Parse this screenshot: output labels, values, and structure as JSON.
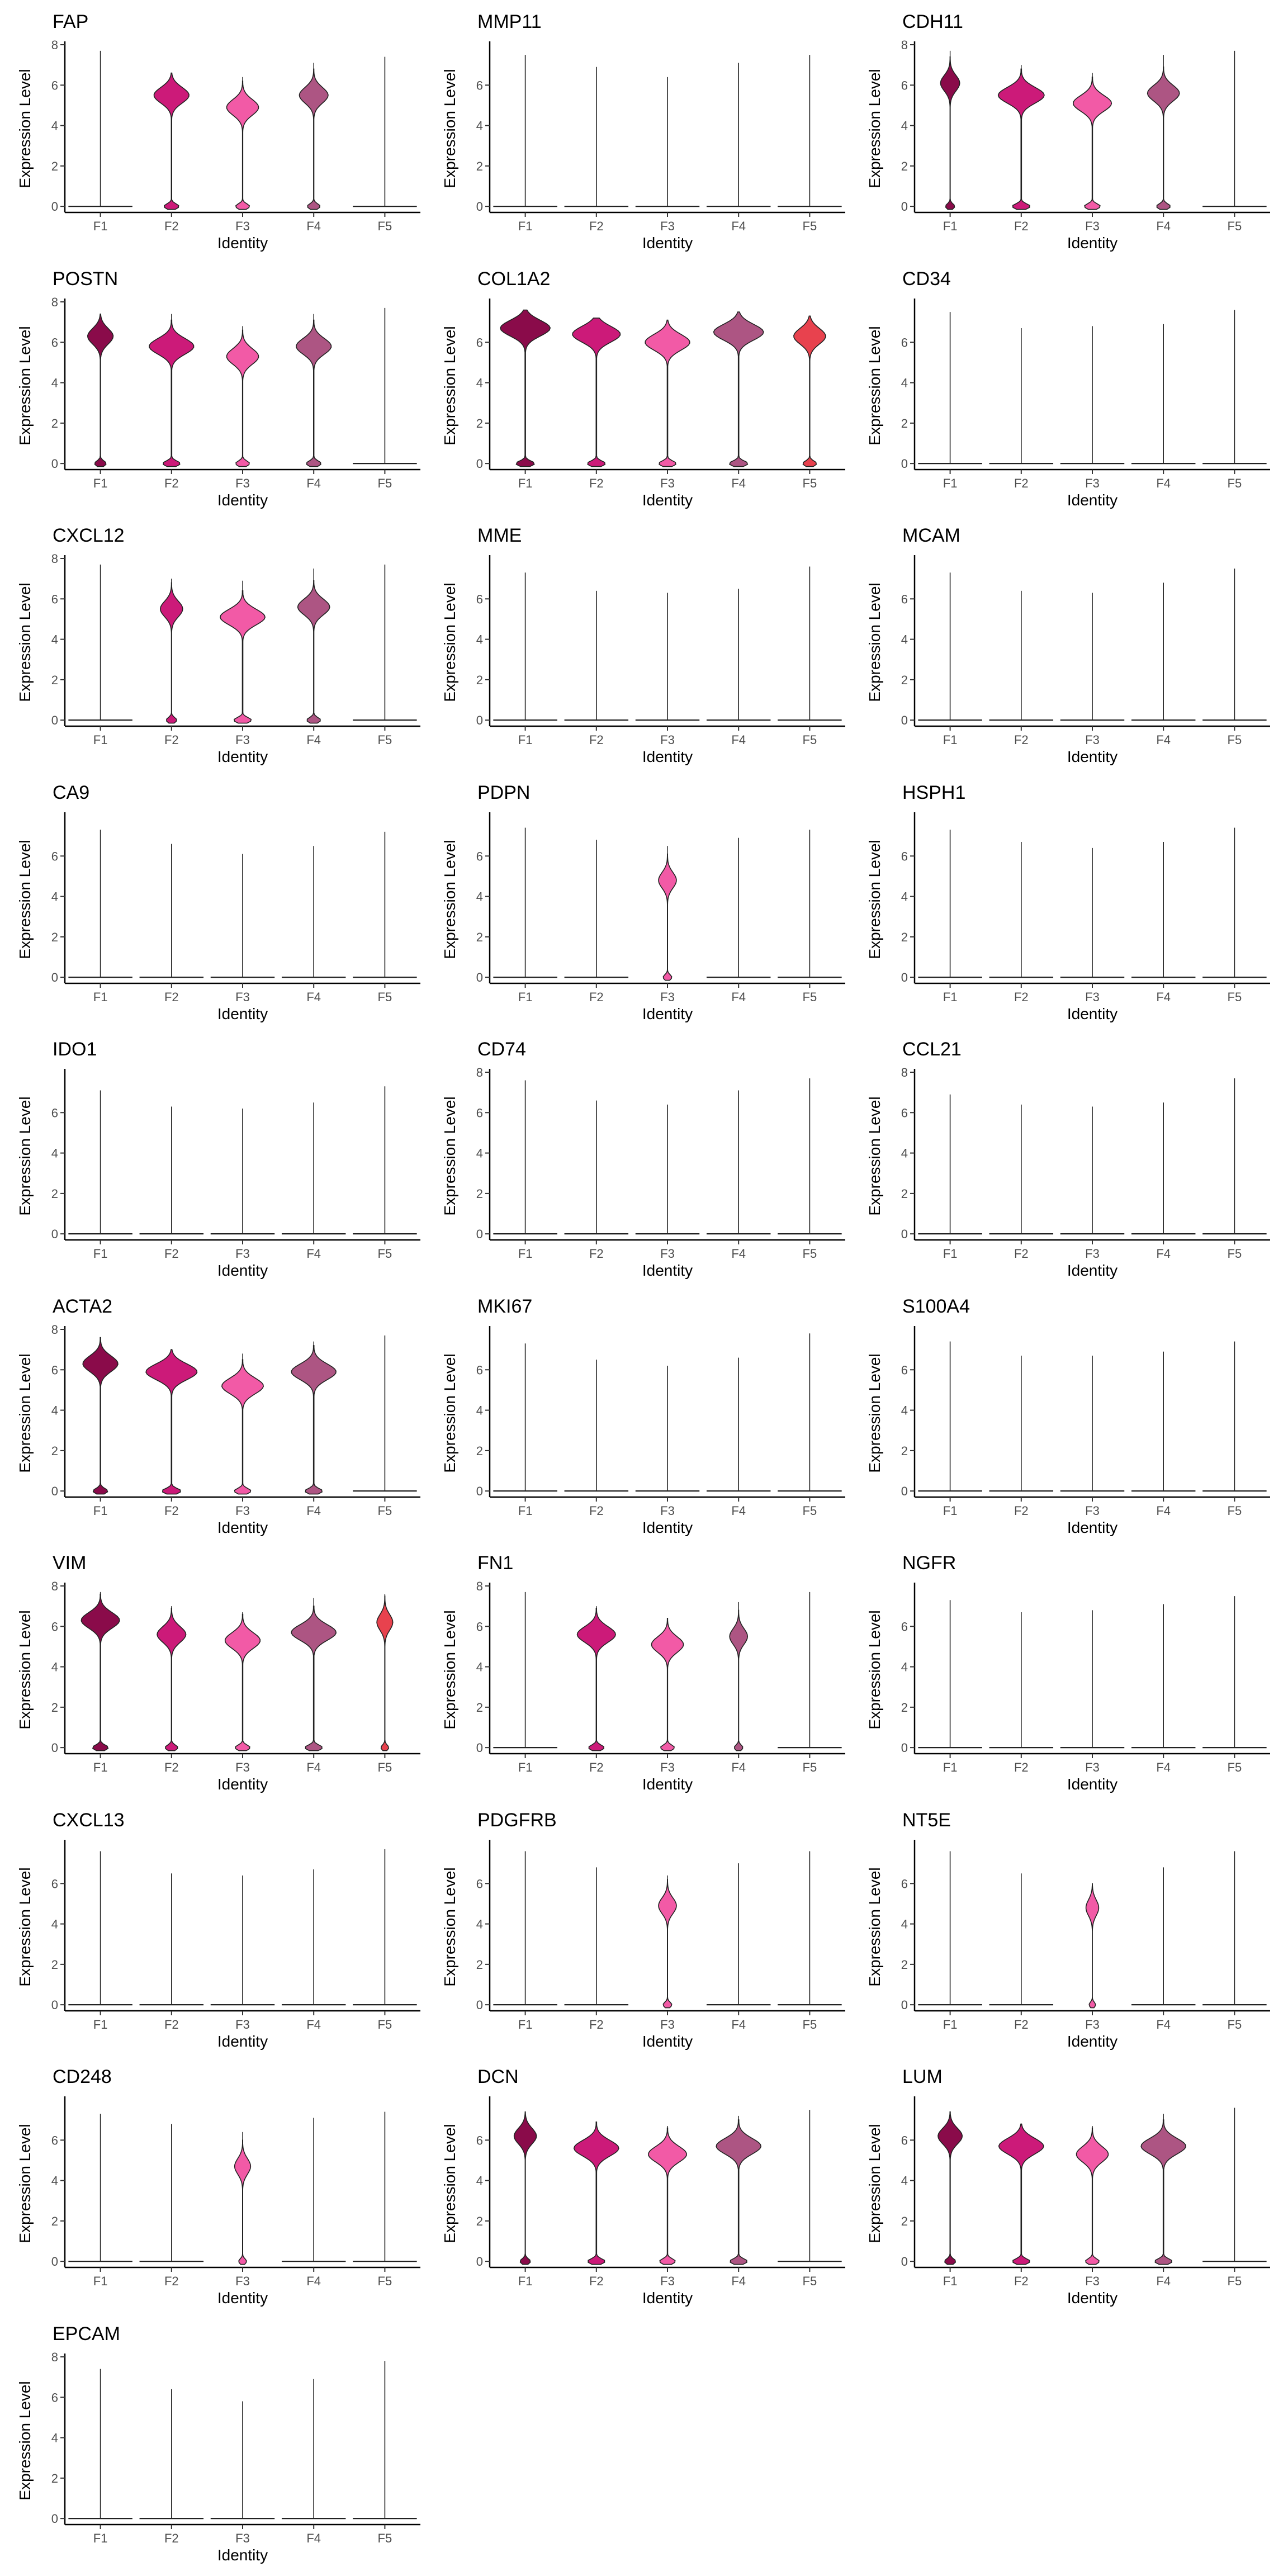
{
  "chart_data": {
    "type": "violin",
    "xlabel": "Identity",
    "ylabel": "Expression Level",
    "categories": [
      "F1",
      "F2",
      "F3",
      "F4",
      "F5"
    ],
    "colors": [
      "#8a0b4a",
      "#cc1a79",
      "#f25aa6",
      "#ad5583",
      "#e8424e"
    ],
    "ylim": [
      -0.3,
      8
    ],
    "yticks": [
      0,
      2,
      4,
      6,
      8
    ],
    "panels": [
      {
        "title": "FAP",
        "yticks": [
          0,
          2,
          4,
          6,
          8
        ],
        "max": [
          7.7,
          6.6,
          6.4,
          7.1,
          7.4
        ],
        "violins": [
          {
            "c": 1,
            "p": 5.5,
            "w": 0.55
          },
          {
            "c": 2,
            "p": 4.9,
            "w": 0.5
          },
          {
            "c": 3,
            "p": 5.5,
            "w": 0.45
          }
        ]
      },
      {
        "title": "MMP11",
        "yticks": [
          0,
          2,
          4,
          6
        ],
        "max": [
          7.5,
          6.9,
          6.4,
          7.1,
          7.5
        ],
        "violins": []
      },
      {
        "title": "CDH11",
        "yticks": [
          0,
          2,
          4,
          6,
          8
        ],
        "max": [
          7.7,
          7.0,
          6.6,
          7.5,
          7.7
        ],
        "violins": [
          {
            "c": 0,
            "p": 6.1,
            "w": 0.3
          },
          {
            "c": 1,
            "p": 5.5,
            "w": 0.72
          },
          {
            "c": 2,
            "p": 5.1,
            "w": 0.6
          },
          {
            "c": 3,
            "p": 5.6,
            "w": 0.5
          }
        ]
      },
      {
        "title": "POSTN",
        "yticks": [
          0,
          2,
          4,
          6,
          8
        ],
        "max": [
          7.4,
          7.4,
          6.8,
          7.4,
          7.7
        ],
        "violins": [
          {
            "c": 0,
            "p": 6.3,
            "w": 0.4
          },
          {
            "c": 1,
            "p": 5.8,
            "w": 0.7
          },
          {
            "c": 2,
            "p": 5.3,
            "w": 0.5
          },
          {
            "c": 3,
            "p": 5.8,
            "w": 0.55
          }
        ]
      },
      {
        "title": "COL1A2",
        "yticks": [
          0,
          2,
          4,
          6
        ],
        "max": [
          7.6,
          7.2,
          7.1,
          7.5,
          7.3
        ],
        "violins": [
          {
            "c": 0,
            "p": 6.7,
            "w": 0.78
          },
          {
            "c": 1,
            "p": 6.4,
            "w": 0.75
          },
          {
            "c": 2,
            "p": 6.0,
            "w": 0.7
          },
          {
            "c": 3,
            "p": 6.5,
            "w": 0.78
          },
          {
            "c": 4,
            "p": 6.3,
            "w": 0.5
          }
        ]
      },
      {
        "title": "CD34",
        "yticks": [
          0,
          2,
          4,
          6
        ],
        "max": [
          7.5,
          6.7,
          6.8,
          6.9,
          7.6
        ],
        "violins": []
      },
      {
        "title": "CXCL12",
        "yticks": [
          0,
          2,
          4,
          6,
          8
        ],
        "max": [
          7.7,
          7.0,
          6.9,
          7.5,
          7.7
        ],
        "violins": [
          {
            "c": 1,
            "p": 5.5,
            "w": 0.35
          },
          {
            "c": 2,
            "p": 5.1,
            "w": 0.7
          },
          {
            "c": 3,
            "p": 5.6,
            "w": 0.5
          }
        ]
      },
      {
        "title": "MME",
        "yticks": [
          0,
          2,
          4,
          6
        ],
        "max": [
          7.3,
          6.4,
          6.3,
          6.5,
          7.6
        ],
        "violins": []
      },
      {
        "title": "MCAM",
        "yticks": [
          0,
          2,
          4,
          6
        ],
        "max": [
          7.3,
          6.4,
          6.3,
          6.8,
          7.5
        ],
        "violins": []
      },
      {
        "title": "CA9",
        "yticks": [
          0,
          2,
          4,
          6
        ],
        "max": [
          7.3,
          6.6,
          6.1,
          6.5,
          7.2
        ],
        "violins": []
      },
      {
        "title": "PDPN",
        "yticks": [
          0,
          2,
          4,
          6
        ],
        "max": [
          7.4,
          6.8,
          6.5,
          6.9,
          7.3
        ],
        "violins": [
          {
            "c": 2,
            "p": 4.8,
            "w": 0.28
          }
        ]
      },
      {
        "title": "HSPH1",
        "yticks": [
          0,
          2,
          4,
          6
        ],
        "max": [
          7.3,
          6.7,
          6.4,
          6.7,
          7.4
        ],
        "violins": []
      },
      {
        "title": "IDO1",
        "yticks": [
          0,
          2,
          4,
          6
        ],
        "max": [
          7.1,
          6.3,
          6.2,
          6.5,
          7.3
        ],
        "violins": []
      },
      {
        "title": "CD74",
        "yticks": [
          0,
          2,
          4,
          6,
          8
        ],
        "max": [
          7.6,
          6.6,
          6.4,
          7.1,
          7.7
        ],
        "violins": []
      },
      {
        "title": "CCL21",
        "yticks": [
          0,
          2,
          4,
          6,
          8
        ],
        "max": [
          6.9,
          6.4,
          6.3,
          6.5,
          7.7
        ],
        "violins": []
      },
      {
        "title": "ACTA2",
        "yticks": [
          0,
          2,
          4,
          6,
          8
        ],
        "max": [
          7.6,
          7.0,
          6.8,
          7.4,
          7.7
        ],
        "violins": [
          {
            "c": 0,
            "p": 6.3,
            "w": 0.55
          },
          {
            "c": 1,
            "p": 5.9,
            "w": 0.8
          },
          {
            "c": 2,
            "p": 5.2,
            "w": 0.65
          },
          {
            "c": 3,
            "p": 5.9,
            "w": 0.7
          }
        ]
      },
      {
        "title": "MKI67",
        "yticks": [
          0,
          2,
          4,
          6
        ],
        "max": [
          7.3,
          6.5,
          6.2,
          6.6,
          7.8
        ],
        "violins": []
      },
      {
        "title": "S100A4",
        "yticks": [
          0,
          2,
          4,
          6
        ],
        "max": [
          7.4,
          6.7,
          6.7,
          6.9,
          7.4
        ],
        "violins": []
      },
      {
        "title": "VIM",
        "yticks": [
          0,
          2,
          4,
          6,
          8
        ],
        "max": [
          7.7,
          7.0,
          6.7,
          7.4,
          7.6
        ],
        "violins": [
          {
            "c": 0,
            "p": 6.3,
            "w": 0.6
          },
          {
            "c": 1,
            "p": 5.6,
            "w": 0.45
          },
          {
            "c": 2,
            "p": 5.3,
            "w": 0.55
          },
          {
            "c": 3,
            "p": 5.7,
            "w": 0.7
          },
          {
            "c": 4,
            "p": 6.2,
            "w": 0.25
          }
        ]
      },
      {
        "title": "FN1",
        "yticks": [
          0,
          2,
          4,
          6,
          8
        ],
        "max": [
          7.7,
          7.0,
          6.4,
          7.2,
          7.7
        ],
        "violins": [
          {
            "c": 1,
            "p": 5.6,
            "w": 0.6
          },
          {
            "c": 2,
            "p": 5.1,
            "w": 0.5
          },
          {
            "c": 3,
            "p": 5.5,
            "w": 0.28
          }
        ]
      },
      {
        "title": "NGFR",
        "yticks": [
          0,
          2,
          4,
          6
        ],
        "max": [
          7.3,
          6.7,
          6.8,
          7.1,
          7.5
        ],
        "violins": []
      },
      {
        "title": "CXCL13",
        "yticks": [
          0,
          2,
          4,
          6
        ],
        "max": [
          7.6,
          6.5,
          6.4,
          6.7,
          7.7
        ],
        "violins": []
      },
      {
        "title": "PDGFRB",
        "yticks": [
          0,
          2,
          4,
          6
        ],
        "max": [
          7.6,
          6.8,
          6.4,
          7.0,
          7.6
        ],
        "violins": [
          {
            "c": 2,
            "p": 4.9,
            "w": 0.28
          }
        ]
      },
      {
        "title": "NT5E",
        "yticks": [
          0,
          2,
          4,
          6
        ],
        "max": [
          7.6,
          6.5,
          6.0,
          6.8,
          7.6
        ],
        "violins": [
          {
            "c": 2,
            "p": 4.8,
            "w": 0.2
          }
        ]
      },
      {
        "title": "CD248",
        "yticks": [
          0,
          2,
          4,
          6
        ],
        "max": [
          7.3,
          6.8,
          6.4,
          7.1,
          7.4
        ],
        "violins": [
          {
            "c": 2,
            "p": 4.7,
            "w": 0.25
          }
        ]
      },
      {
        "title": "DCN",
        "yticks": [
          0,
          2,
          4,
          6
        ],
        "max": [
          7.4,
          6.9,
          6.7,
          7.2,
          7.5
        ],
        "violins": [
          {
            "c": 0,
            "p": 6.2,
            "w": 0.35
          },
          {
            "c": 1,
            "p": 5.6,
            "w": 0.7
          },
          {
            "c": 2,
            "p": 5.3,
            "w": 0.6
          },
          {
            "c": 3,
            "p": 5.7,
            "w": 0.7
          }
        ]
      },
      {
        "title": "LUM",
        "yticks": [
          0,
          2,
          4,
          6
        ],
        "max": [
          7.4,
          6.8,
          6.7,
          7.3,
          7.6
        ],
        "violins": [
          {
            "c": 0,
            "p": 6.2,
            "w": 0.38
          },
          {
            "c": 1,
            "p": 5.7,
            "w": 0.7
          },
          {
            "c": 2,
            "p": 5.3,
            "w": 0.5
          },
          {
            "c": 3,
            "p": 5.7,
            "w": 0.7
          }
        ]
      },
      {
        "title": "EPCAM",
        "yticks": [
          0,
          2,
          4,
          6,
          8
        ],
        "max": [
          7.4,
          6.4,
          5.8,
          6.9,
          7.8
        ],
        "violins": []
      }
    ]
  }
}
